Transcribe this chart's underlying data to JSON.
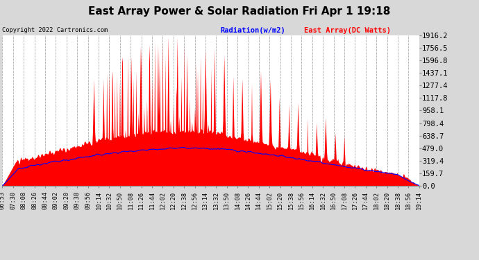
{
  "title": "East Array Power & Solar Radiation Fri Apr 1 19:18",
  "copyright_text": "Copyright 2022 Cartronics.com",
  "legend_radiation": "Radiation(w/m2)",
  "legend_east": "East Array(DC Watts)",
  "radiation_color": "blue",
  "east_color": "red",
  "ymax": 1916.2,
  "ymin": 0.0,
  "yticks": [
    0.0,
    159.7,
    319.4,
    479.0,
    638.7,
    798.4,
    958.1,
    1117.8,
    1277.4,
    1437.1,
    1596.8,
    1756.5,
    1916.2
  ],
  "background_color": "#d8d8d8",
  "plot_bg": "#ffffff",
  "grid_color": "#bbbbbb",
  "title_fontsize": 11,
  "label_fontsize": 7.5
}
